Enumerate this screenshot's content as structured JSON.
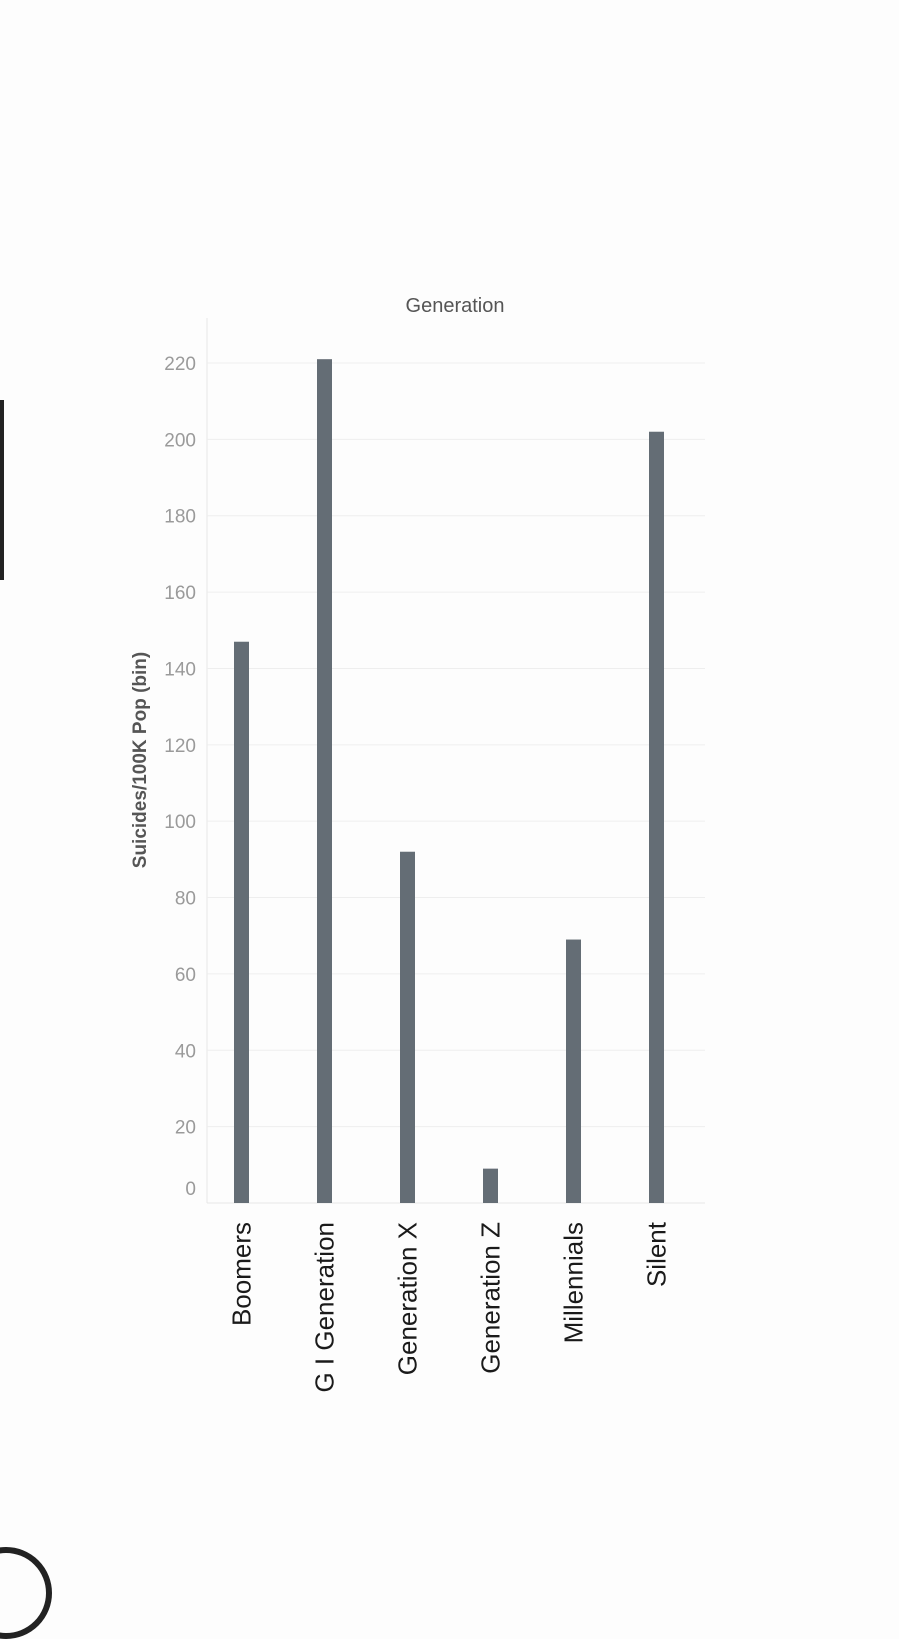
{
  "chart_data": {
    "type": "bar",
    "title": "Generation",
    "ylabel": "Suicides/100K Pop (bin)",
    "xlabel": "",
    "categories": [
      "Boomers",
      "G I Generation",
      "Generation X",
      "Generation Z",
      "Millennials",
      "Silent"
    ],
    "values": [
      147,
      221,
      92,
      9,
      69,
      202
    ],
    "ylim": [
      0,
      230
    ],
    "yticks": [
      0,
      20,
      40,
      60,
      80,
      100,
      120,
      140,
      160,
      180,
      200,
      220
    ],
    "grid": true,
    "bar_color": "#646d75"
  }
}
